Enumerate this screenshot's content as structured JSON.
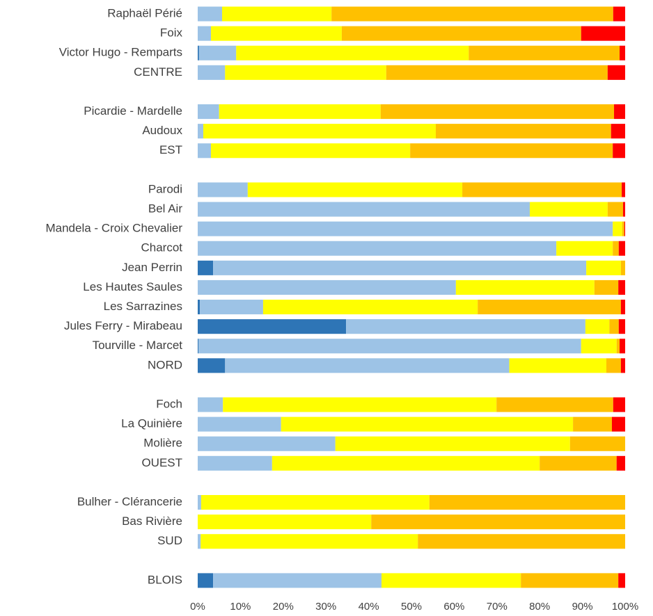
{
  "chart_data": {
    "type": "stacked_bar_horizontal",
    "categories": [
      "Raphaël Périé",
      "Foix",
      "Victor Hugo - Remparts",
      "CENTRE",
      null,
      "Picardie - Mardelle",
      "Audoux",
      "EST",
      null,
      "Parodi",
      "Bel Air",
      "Mandela - Croix Chevalier",
      "Charcot",
      "Jean Perrin",
      "Les Hautes Saules",
      "Les Sarrazines",
      "Jules Ferry - Mirabeau",
      "Tourville - Marcet",
      "NORD",
      null,
      "Foch",
      "La Quinière",
      "Molière",
      "OUEST",
      null,
      "Bulher - Clérancerie",
      "Bas Rivière",
      "SUD",
      null,
      "BLOIS"
    ],
    "series": [
      {
        "color": "#2e75b6",
        "values": [
          0,
          0,
          0.3,
          0,
          null,
          0,
          0,
          0,
          null,
          0,
          0,
          0,
          0,
          3.6,
          0,
          0.5,
          34.7,
          0.2,
          6.4,
          null,
          0,
          0,
          0,
          0,
          null,
          0,
          0,
          0,
          null,
          3.6
        ]
      },
      {
        "color": "#9dc3e6",
        "values": [
          5.7,
          3.1,
          8.7,
          6.4,
          null,
          5.0,
          1.3,
          3.1,
          null,
          11.7,
          77.7,
          97.1,
          83.9,
          87.3,
          60.4,
          14.8,
          56.0,
          89.5,
          66.5,
          null,
          5.9,
          19.5,
          32.2,
          17.4,
          null,
          0.8,
          0,
          0.7,
          null,
          39.4
        ]
      },
      {
        "color": "#ffff00",
        "values": [
          25.6,
          30.6,
          54.4,
          37.7,
          null,
          37.8,
          54.4,
          46.6,
          null,
          50.2,
          18.2,
          2.2,
          13.2,
          8.1,
          32.4,
          50.2,
          5.6,
          8.3,
          22.7,
          null,
          64.0,
          68.3,
          54.9,
          62.6,
          null,
          53.4,
          40.6,
          50.8,
          null,
          32.6
        ]
      },
      {
        "color": "#ffc000",
        "values": [
          65.9,
          56.0,
          35.3,
          51.8,
          null,
          54.6,
          41.0,
          47.4,
          null,
          37.3,
          3.6,
          0.5,
          1.4,
          1.0,
          5.6,
          33.5,
          2.2,
          0.7,
          3.4,
          null,
          27.3,
          9.1,
          12.9,
          18.0,
          null,
          45.8,
          59.4,
          48.5,
          null,
          22.8
        ]
      },
      {
        "color": "#ff0000",
        "values": [
          2.8,
          10.3,
          1.3,
          4.1,
          null,
          2.6,
          3.3,
          2.9,
          null,
          0.8,
          0.5,
          0.2,
          1.5,
          0,
          1.6,
          1.0,
          1.5,
          1.3,
          1.0,
          null,
          2.8,
          3.1,
          0,
          2.0,
          null,
          0,
          0,
          0,
          null,
          1.6
        ]
      }
    ],
    "xlim": [
      0,
      100
    ],
    "xticks": [
      {
        "value": 0,
        "label": "0%"
      },
      {
        "value": 10,
        "label": "10%"
      },
      {
        "value": 20,
        "label": "20%"
      },
      {
        "value": 30,
        "label": "30%"
      },
      {
        "value": 40,
        "label": "40%"
      },
      {
        "value": 50,
        "label": "50%"
      },
      {
        "value": 60,
        "label": "60%"
      },
      {
        "value": 70,
        "label": "70%"
      },
      {
        "value": 80,
        "label": "80%"
      },
      {
        "value": 90,
        "label": "90%"
      },
      {
        "value": 100,
        "label": "100%"
      }
    ],
    "grid": false
  }
}
